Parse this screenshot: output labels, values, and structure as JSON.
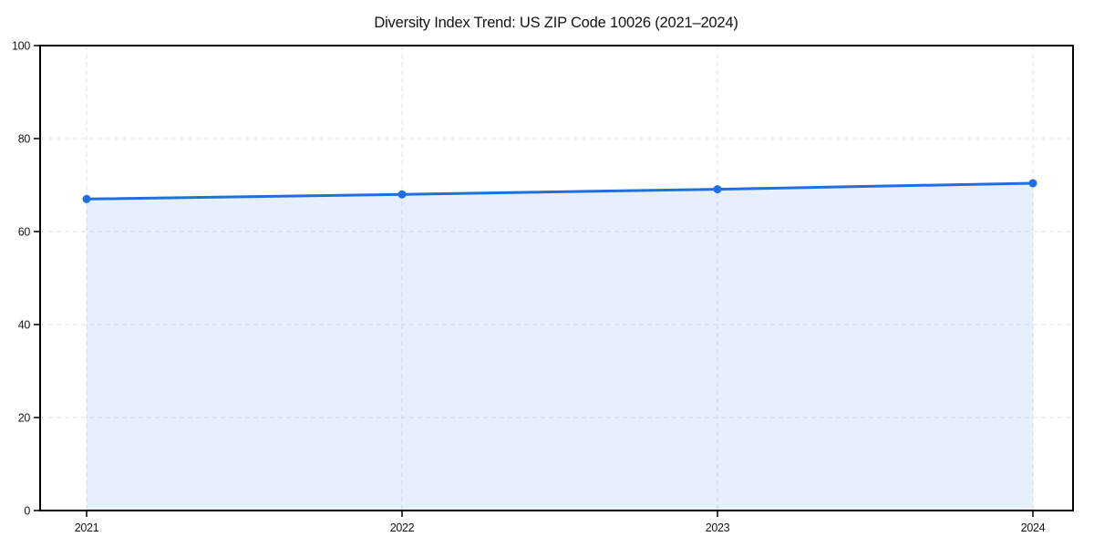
{
  "chart_data": {
    "type": "area",
    "title": "Diversity Index Trend: US ZIP Code 10026 (2021–2024)",
    "categories": [
      "2021",
      "2022",
      "2023",
      "2024"
    ],
    "values": [
      67.0,
      68.0,
      69.1,
      70.4
    ],
    "xlabel": "",
    "ylabel": "",
    "ylim": [
      0,
      100
    ],
    "yticks": [
      0,
      20,
      40,
      60,
      80,
      100
    ],
    "grid": true,
    "grid_style": "dashed",
    "legend": "none",
    "marker": "circle",
    "colors": {
      "line": "#1f6fe0",
      "marker": "#1f6fe0",
      "fill": "#1f6fe0",
      "fill_opacity": 0.11,
      "grid": "#e2e2e2",
      "axis": "#000000",
      "text": "#111111"
    }
  }
}
